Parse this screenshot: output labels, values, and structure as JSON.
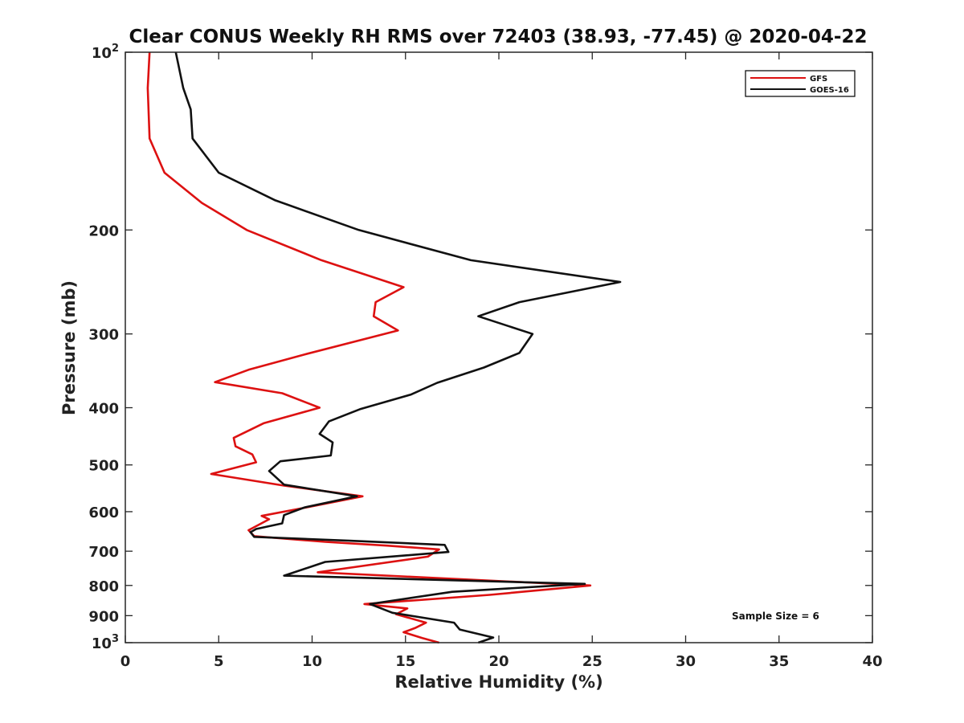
{
  "chart_data": {
    "type": "line",
    "title": "Clear CONUS Weekly RH RMS over 72403 (38.93, -77.45) @ 2020-04-22",
    "xlabel": "Relative Humidity (%)",
    "ylabel": "Pressure (mb)",
    "xlim": [
      0,
      40
    ],
    "ylim": [
      1000,
      100
    ],
    "yscale": "log",
    "y_inverted": true,
    "x_ticks": [
      "0",
      "5",
      "10",
      "15",
      "20",
      "25",
      "30",
      "35",
      "40"
    ],
    "x_tick_values": [
      0,
      5,
      10,
      15,
      20,
      25,
      30,
      35,
      40
    ],
    "y_tick_values": [
      100,
      200,
      300,
      400,
      500,
      600,
      700,
      800,
      900,
      1000
    ],
    "y_ticks": [
      {
        "label": "10",
        "exp": "2"
      },
      {
        "label": "200",
        "exp": ""
      },
      {
        "label": "300",
        "exp": ""
      },
      {
        "label": "400",
        "exp": ""
      },
      {
        "label": "500",
        "exp": ""
      },
      {
        "label": "600",
        "exp": ""
      },
      {
        "label": "700",
        "exp": ""
      },
      {
        "label": "800",
        "exp": ""
      },
      {
        "label": "900",
        "exp": ""
      },
      {
        "label": "10",
        "exp": "3"
      }
    ],
    "grid": false,
    "legend_position": "top-right",
    "annotation": "Sample Size = 6",
    "series": [
      {
        "name": "GFS",
        "color": "#dd1111",
        "points": [
          [
            1.3,
            100
          ],
          [
            1.2,
            115
          ],
          [
            1.3,
            140
          ],
          [
            2.1,
            160
          ],
          [
            4.1,
            180
          ],
          [
            6.5,
            200
          ],
          [
            10.5,
            225
          ],
          [
            14.9,
            250
          ],
          [
            13.4,
            265
          ],
          [
            13.3,
            280
          ],
          [
            14.6,
            296
          ],
          [
            9.6,
            325
          ],
          [
            6.6,
            345
          ],
          [
            4.8,
            362
          ],
          [
            8.4,
            378
          ],
          [
            10.4,
            400
          ],
          [
            7.4,
            425
          ],
          [
            5.8,
            450
          ],
          [
            5.9,
            465
          ],
          [
            6.8,
            480
          ],
          [
            7.0,
            495
          ],
          [
            4.6,
            518
          ],
          [
            8.5,
            542
          ],
          [
            12.7,
            565
          ],
          [
            9.7,
            590
          ],
          [
            7.3,
            610
          ],
          [
            7.7,
            618
          ],
          [
            6.6,
            645
          ],
          [
            6.9,
            660
          ],
          [
            10.7,
            675
          ],
          [
            14.0,
            685
          ],
          [
            16.8,
            695
          ],
          [
            16.2,
            715
          ],
          [
            10.3,
            760
          ],
          [
            24.9,
            800
          ],
          [
            19.5,
            830
          ],
          [
            12.8,
            860
          ],
          [
            15.1,
            875
          ],
          [
            14.5,
            895
          ],
          [
            16.1,
            925
          ],
          [
            15.5,
            945
          ],
          [
            14.9,
            960
          ],
          [
            15.9,
            982
          ],
          [
            16.8,
            1000
          ]
        ]
      },
      {
        "name": "GOES-16",
        "color": "#111111",
        "points": [
          [
            2.7,
            100
          ],
          [
            3.1,
            115
          ],
          [
            3.5,
            125
          ],
          [
            3.6,
            140
          ],
          [
            5.0,
            160
          ],
          [
            8.0,
            178
          ],
          [
            12.5,
            200
          ],
          [
            18.5,
            225
          ],
          [
            26.5,
            245
          ],
          [
            21.1,
            265
          ],
          [
            18.9,
            280
          ],
          [
            21.8,
            300
          ],
          [
            21.1,
            323
          ],
          [
            19.2,
            342
          ],
          [
            16.7,
            363
          ],
          [
            15.3,
            380
          ],
          [
            12.6,
            402
          ],
          [
            10.9,
            422
          ],
          [
            10.4,
            443
          ],
          [
            11.1,
            458
          ],
          [
            11.0,
            482
          ],
          [
            8.3,
            493
          ],
          [
            7.7,
            512
          ],
          [
            8.5,
            540
          ],
          [
            12.4,
            565
          ],
          [
            9.6,
            590
          ],
          [
            8.5,
            608
          ],
          [
            8.4,
            628
          ],
          [
            7.0,
            642
          ],
          [
            6.7,
            650
          ],
          [
            6.9,
            662
          ],
          [
            12.0,
            672
          ],
          [
            17.1,
            683
          ],
          [
            17.3,
            702
          ],
          [
            10.7,
            730
          ],
          [
            8.5,
            770
          ],
          [
            24.6,
            795
          ],
          [
            17.5,
            820
          ],
          [
            13.1,
            860
          ],
          [
            14.3,
            890
          ],
          [
            17.6,
            925
          ],
          [
            17.9,
            950
          ],
          [
            19.7,
            980
          ],
          [
            18.9,
            1000
          ]
        ]
      }
    ]
  }
}
